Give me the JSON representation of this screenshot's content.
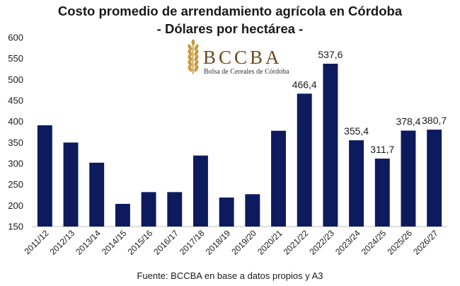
{
  "chart_data": {
    "type": "bar",
    "title": "Costo promedio de arrendamiento agrícola en Córdoba",
    "subtitle": "- Dólares por hectárea -",
    "categories": [
      "2011/12",
      "2012/13",
      "2013/14",
      "2014/15",
      "2015/16",
      "2016/17",
      "2017/18",
      "2018/19",
      "2019/20",
      "2020/21",
      "2021/22",
      "2022/23",
      "2023/24",
      "2024/25",
      "2025/26",
      "2026/27"
    ],
    "values": [
      391,
      350,
      302,
      204,
      232,
      232,
      319,
      219,
      227,
      378,
      466.4,
      537.6,
      355.4,
      311.7,
      378.4,
      380.7
    ],
    "data_labels": [
      "",
      "",
      "",
      "",
      "",
      "",
      "",
      "",
      "",
      "",
      "466,4",
      "537,6",
      "355,4",
      "311,7",
      "378,4",
      "380,7"
    ],
    "yticks": [
      "150",
      "200",
      "250",
      "300",
      "350",
      "400",
      "450",
      "500",
      "550",
      "600"
    ],
    "ylim": [
      150,
      600
    ],
    "xlabel": "",
    "ylabel": "",
    "grid": false,
    "bar_color": "#0d1a5e"
  },
  "logo": {
    "name": "BCCBA",
    "subtitle": "Bolsa de Cereales de Córdoba",
    "icon": "wheat-icon",
    "color": "#c89a3c"
  },
  "source": "Fuente: BCCBA en base a datos propios y A3"
}
